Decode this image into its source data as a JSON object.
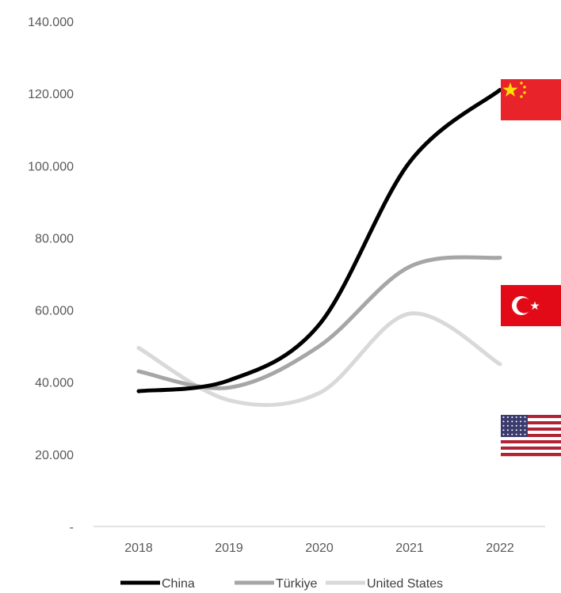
{
  "chart_data": {
    "type": "line",
    "title": "",
    "xlabel": "",
    "ylabel": "",
    "categories": [
      "2018",
      "2019",
      "2020",
      "2021",
      "2022"
    ],
    "ylim": [
      0,
      140000
    ],
    "yticks": [
      0,
      20000,
      40000,
      60000,
      80000,
      100000,
      120000,
      140000
    ],
    "ytick_labels": [
      "-",
      "20.000",
      "40.000",
      "60.000",
      "80.000",
      "100.000",
      "120.000",
      "140.000"
    ],
    "grid": false,
    "legend_position": "bottom",
    "series": [
      {
        "name": "China",
        "color": "#000000",
        "values": [
          37500,
          40500,
          56000,
          101000,
          121000
        ],
        "flag": "china-flag"
      },
      {
        "name": "Türkiye",
        "color": "#a6a6a6",
        "values": [
          43000,
          38500,
          50000,
          72000,
          74500
        ],
        "flag": "turkiye-flag"
      },
      {
        "name": "United States",
        "color": "#d9d9d9",
        "values": [
          49500,
          35000,
          37000,
          59000,
          45000
        ],
        "flag": "us-flag"
      }
    ]
  }
}
